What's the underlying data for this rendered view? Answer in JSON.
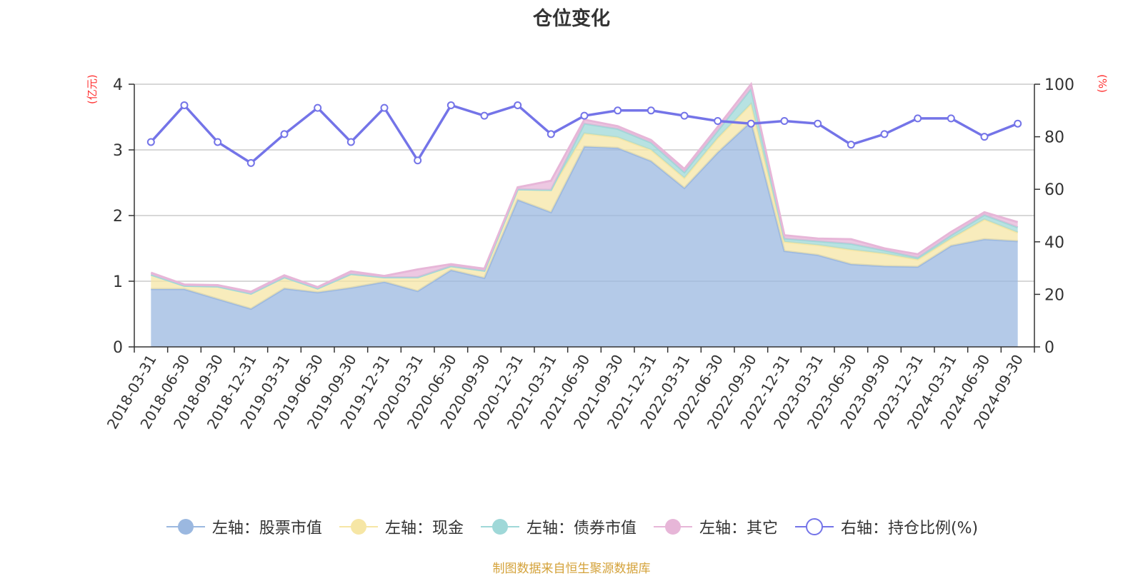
{
  "chart_data": {
    "type": "area",
    "title": "仓位变化",
    "left_axis_unit": "(亿元)",
    "right_axis_unit": "(%)",
    "y_left_lim": [
      0,
      4
    ],
    "y_left_ticks": [
      "0",
      "1",
      "2",
      "3",
      "4"
    ],
    "y_right_lim": [
      0,
      100
    ],
    "y_right_ticks": [
      "0",
      "20",
      "40",
      "60",
      "80",
      "100"
    ],
    "grid": true,
    "legend_position": "bottom",
    "x": [
      "2018-03-31",
      "2018-06-30",
      "2018-09-30",
      "2018-12-31",
      "2019-03-31",
      "2019-06-30",
      "2019-09-30",
      "2019-12-31",
      "2020-03-31",
      "2020-06-30",
      "2020-09-30",
      "2020-12-31",
      "2021-03-31",
      "2021-06-30",
      "2021-09-30",
      "2021-12-31",
      "2022-03-31",
      "2022-06-30",
      "2022-09-30",
      "2022-12-31",
      "2023-03-31",
      "2023-06-30",
      "2023-09-30",
      "2023-12-31",
      "2024-03-31",
      "2024-06-30",
      "2024-09-30"
    ],
    "x_tick_labels": [
      "2018-03-31",
      "2018-06-30",
      "2018-09-30",
      "2018-12-31",
      "2019-03-31",
      "2019-06-30",
      "2019-09-30",
      "2019-12-31",
      "2020-03-31",
      "2020-06-30",
      "2020-09-30",
      "2020-12-31",
      "2021-03-31",
      "2021-06-30",
      "2021-09-30",
      "2021-12-31",
      "2022-03-31",
      "2022-06-30",
      "2022-09-30",
      "2022-12-31",
      "2023-03-31",
      "2023-06-30",
      "2023-09-30",
      "2023-12-31",
      "2024-03-31",
      "2024-06-30",
      "2024-09-30"
    ],
    "series": [
      {
        "name": "左轴：股票市值",
        "axis": "left",
        "kind": "stacked-area",
        "color": "#9bb8e0",
        "values": [
          0.88,
          0.88,
          0.73,
          0.58,
          0.89,
          0.83,
          0.9,
          0.99,
          0.85,
          1.17,
          1.05,
          2.24,
          2.05,
          3.05,
          3.03,
          2.83,
          2.42,
          2.96,
          3.43,
          1.46,
          1.4,
          1.26,
          1.23,
          1.22,
          1.54,
          1.64,
          1.61
        ]
      },
      {
        "name": "左轴：现金",
        "axis": "left",
        "kind": "stacked-area",
        "color": "#f6e6a5",
        "values": [
          0.22,
          0.05,
          0.19,
          0.23,
          0.17,
          0.06,
          0.21,
          0.07,
          0.21,
          0.06,
          0.11,
          0.16,
          0.34,
          0.2,
          0.16,
          0.17,
          0.15,
          0.22,
          0.27,
          0.14,
          0.15,
          0.22,
          0.19,
          0.11,
          0.11,
          0.3,
          0.13
        ]
      },
      {
        "name": "左轴：债券市值",
        "axis": "left",
        "kind": "stacked-area",
        "color": "#9fd8d8",
        "values": [
          0,
          0,
          0,
          0,
          0,
          0,
          0,
          0,
          0,
          0,
          0,
          0,
          0,
          0.15,
          0.13,
          0.11,
          0.09,
          0.11,
          0.23,
          0.05,
          0.06,
          0.09,
          0.05,
          0.03,
          0.05,
          0.07,
          0.08
        ]
      },
      {
        "name": "左轴：其它",
        "axis": "left",
        "kind": "stacked-area",
        "color": "#e7b6d8",
        "values": [
          0.03,
          0.02,
          0.02,
          0.03,
          0.03,
          0.02,
          0.04,
          0.02,
          0.12,
          0.03,
          0.03,
          0.03,
          0.14,
          0.06,
          0.04,
          0.04,
          0.05,
          0.06,
          0.07,
          0.05,
          0.04,
          0.07,
          0.03,
          0.05,
          0.05,
          0.04,
          0.08
        ]
      },
      {
        "name": "右轴：持仓比例(%)",
        "axis": "right",
        "kind": "line",
        "color": "#7474e8",
        "values": [
          78,
          92,
          78,
          70,
          81,
          91,
          78,
          91,
          71,
          92,
          88,
          92,
          81,
          88,
          90,
          90,
          88,
          86,
          85,
          86,
          85,
          77,
          81,
          87,
          87,
          80,
          85
        ]
      }
    ]
  },
  "source_note": "制图数据来自恒生聚源数据库"
}
